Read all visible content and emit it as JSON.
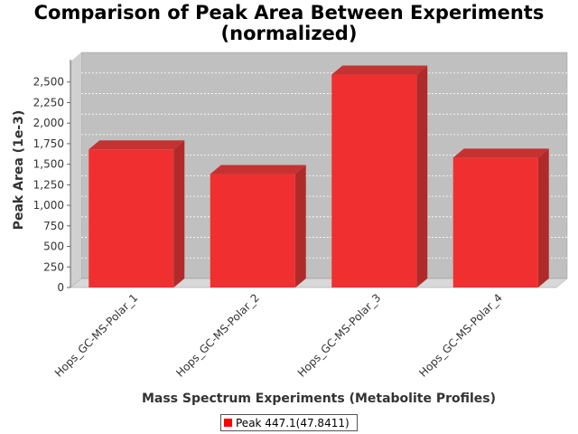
{
  "title": {
    "line1": "Comparison of Peak Area Between Experiments",
    "line2": "(normalized)"
  },
  "colors": {
    "bar_front": "#f03030",
    "bar_side": "#b12a2a",
    "bar_top": "#c53232",
    "plot_back": "#c0c0c0",
    "plot_floor": "#d8d8d8",
    "legend_swatch": "#ff0000"
  },
  "chart_data": {
    "type": "bar",
    "categories": [
      "Hops_GC-MS-Polar_1",
      "Hops_GC-MS-Polar_2",
      "Hops_GC-MS-Polar_3",
      "Hops_GC-MS-Polar_4"
    ],
    "series": [
      {
        "name": "Peak 447.1(47.8411)",
        "values": [
          1680,
          1380,
          2590,
          1580
        ]
      }
    ],
    "xlabel": "Mass Spectrum Experiments (Metabolite Profiles)",
    "ylabel": "Peak Area (1e-3)",
    "ylim": [
      0,
      2750
    ],
    "yticks": [
      0,
      250,
      500,
      750,
      1000,
      1250,
      1500,
      1750,
      2000,
      2250,
      2500
    ],
    "ytick_labels": [
      "0",
      "250",
      "500",
      "750",
      "1,000",
      "1,250",
      "1,500",
      "1,750",
      "2,000",
      "2,250",
      "2,500"
    ],
    "grid": true,
    "legend_position": "bottom",
    "style": "3d"
  }
}
